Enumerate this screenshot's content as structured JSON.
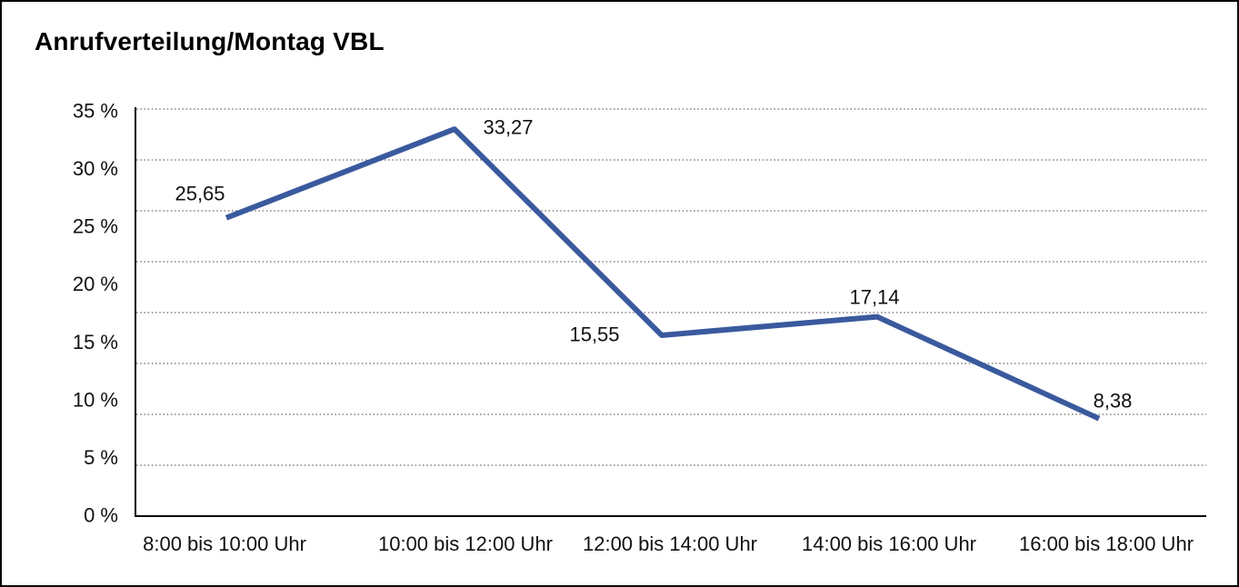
{
  "window": {
    "background_color": "#ffffff",
    "border_color": "#000000"
  },
  "chart_data": {
    "type": "line",
    "title": "Anrufverteilung/Montag VBL",
    "categories": [
      "8:00 bis 10:00 Uhr",
      "10:00 bis 12:00 Uhr",
      "12:00 bis 14:00 Uhr",
      "14:00 bis 16:00 Uhr",
      "16:00 bis 18:00 Uhr"
    ],
    "values": [
      25.65,
      33.27,
      15.55,
      17.14,
      8.38
    ],
    "value_labels": [
      "25,65",
      "33,27",
      "15,55",
      "17,14",
      "8,38"
    ],
    "y_tick_labels": [
      "35 %",
      "30 %",
      "25 %",
      "20 %",
      "15 %",
      "10 %",
      "5 %",
      "0 %"
    ],
    "ylim": [
      0,
      35
    ],
    "xlabel": "",
    "ylabel": "",
    "grid": "horizontal-dotted",
    "legend": "none",
    "line_color": "#3A5A9E",
    "grid_color": "#6e6e6e",
    "axis_color": "#000000",
    "text_color": "#111111"
  }
}
